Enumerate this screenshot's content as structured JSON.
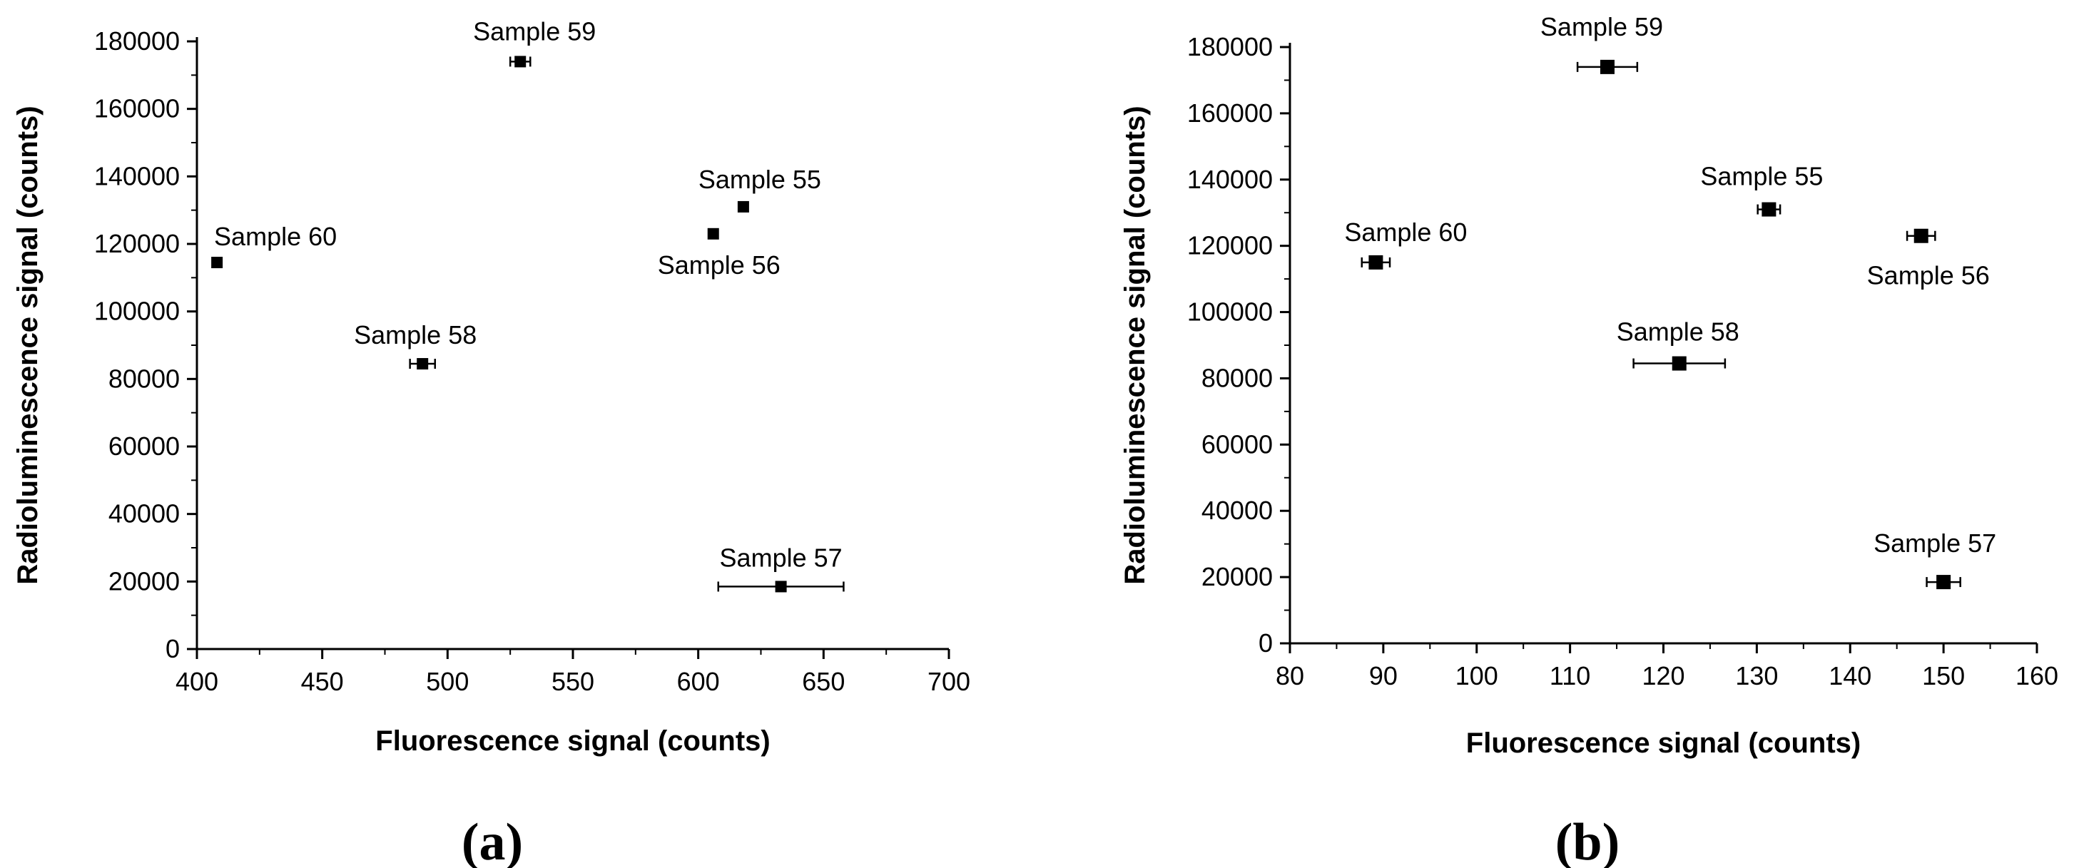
{
  "chart_data": [
    {
      "type": "scatter",
      "panel_label": "(a)",
      "xlabel": "Fluorescence signal (counts)",
      "ylabel": "Radioluminescence signal (counts)",
      "xlim": [
        400,
        700
      ],
      "ylim": [
        0,
        180000
      ],
      "xticks": [
        400,
        450,
        500,
        550,
        600,
        650,
        700
      ],
      "yticks": [
        0,
        20000,
        40000,
        60000,
        80000,
        100000,
        120000,
        140000,
        160000,
        180000
      ],
      "points": [
        {
          "name": "Sample 59",
          "x": 529,
          "y": 174000,
          "xerr": 4,
          "label_pos": "above"
        },
        {
          "name": "Sample 55",
          "x": 618,
          "y": 131000,
          "xerr": 0,
          "label_pos": "above"
        },
        {
          "name": "Sample 56",
          "x": 606,
          "y": 123000,
          "xerr": 0,
          "label_pos": "below"
        },
        {
          "name": "Sample 60",
          "x": 408,
          "y": 114500,
          "xerr": 0,
          "label_pos": "above"
        },
        {
          "name": "Sample 58",
          "x": 490,
          "y": 84500,
          "xerr": 5,
          "label_pos": "above"
        },
        {
          "name": "Sample 57",
          "x": 633,
          "y": 18500,
          "xerr": 25,
          "label_pos": "above"
        }
      ]
    },
    {
      "type": "scatter",
      "panel_label": "(b)",
      "xlabel": "Fluorescence signal (counts)",
      "ylabel": "Radioluminescence signal (counts)",
      "xlim": [
        80,
        160
      ],
      "ylim": [
        0,
        180000
      ],
      "xticks": [
        80,
        90,
        100,
        110,
        120,
        130,
        140,
        150,
        160
      ],
      "yticks": [
        0,
        20000,
        40000,
        60000,
        80000,
        100000,
        120000,
        140000,
        160000,
        180000
      ],
      "points": [
        {
          "name": "Sample 59",
          "x": 114,
          "y": 174000,
          "xerr": 3.2,
          "label_pos": "above"
        },
        {
          "name": "Sample 55",
          "x": 131.3,
          "y": 131000,
          "xerr": 1.2,
          "label_pos": "above"
        },
        {
          "name": "Sample 56",
          "x": 147.6,
          "y": 123000,
          "xerr": 1.5,
          "label_pos": "below"
        },
        {
          "name": "Sample 60",
          "x": 89.2,
          "y": 115000,
          "xerr": 1.5,
          "label_pos": "above"
        },
        {
          "name": "Sample 58",
          "x": 121.7,
          "y": 84500,
          "xerr": 4.9,
          "label_pos": "above"
        },
        {
          "name": "Sample 57",
          "x": 150,
          "y": 18500,
          "xerr": 1.8,
          "label_pos": "above"
        }
      ]
    }
  ]
}
